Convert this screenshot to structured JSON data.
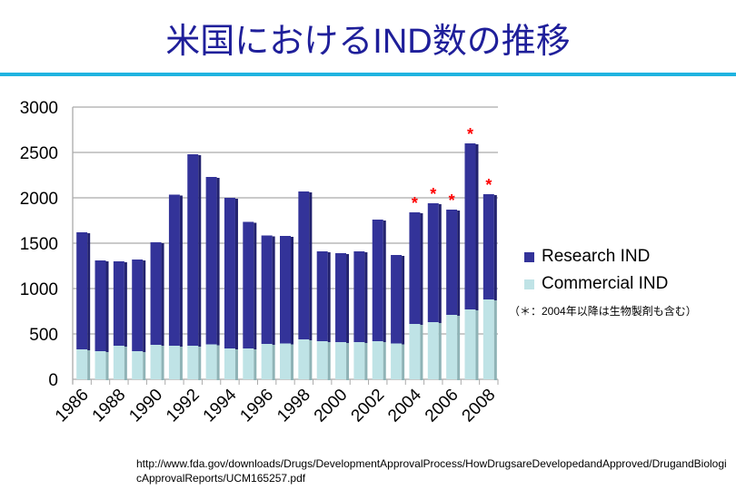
{
  "title": "米国におけるIND数の推移",
  "note": "（＊：2004年以降は生物製剤も含む）",
  "source_url": "http://www.fda.gov/downloads/Drugs/DevelopmentApprovalProcess/HowDrugsareDevelopedandApproved/DrugandBiologicApprovalReports/UCM165257.pdf",
  "chart_data": {
    "type": "bar",
    "stacked": true,
    "title": "米国におけるIND数の推移",
    "xlabel": "",
    "ylabel": "",
    "ylim": [
      0,
      3000
    ],
    "yticks": [
      0,
      500,
      1000,
      1500,
      2000,
      2500,
      3000
    ],
    "grid": true,
    "legend_position": "right",
    "categories": [
      "1986",
      "1987",
      "1988",
      "1989",
      "1990",
      "1991",
      "1992",
      "1993",
      "1994",
      "1995",
      "1996",
      "1997",
      "1998",
      "1999",
      "2000",
      "2001",
      "2002",
      "2003",
      "2004",
      "2005",
      "2006",
      "2007",
      "2008"
    ],
    "xtick_labels": [
      "1986",
      "1988",
      "1990",
      "1992",
      "1994",
      "1996",
      "1998",
      "2000",
      "2002",
      "2004",
      "2006",
      "2008"
    ],
    "series": [
      {
        "name": "Commercial IND",
        "color": "#bfe3e6",
        "values": [
          330,
          310,
          370,
          310,
          380,
          370,
          370,
          385,
          340,
          340,
          390,
          395,
          440,
          420,
          410,
          410,
          420,
          395,
          610,
          630,
          710,
          770,
          880
        ]
      },
      {
        "name": "Research IND",
        "color": "#333399",
        "values": [
          1290,
          1000,
          930,
          1010,
          1130,
          1665,
          2110,
          1845,
          1660,
          1395,
          1195,
          1185,
          1630,
          990,
          980,
          1000,
          1340,
          975,
          1230,
          1310,
          1160,
          1830,
          1160
        ]
      }
    ],
    "annotations": [
      {
        "category": "2004",
        "text": "*"
      },
      {
        "category": "2005",
        "text": "*"
      },
      {
        "category": "2006",
        "text": "*"
      },
      {
        "category": "2007",
        "text": "*"
      },
      {
        "category": "2008",
        "text": "*"
      }
    ]
  }
}
